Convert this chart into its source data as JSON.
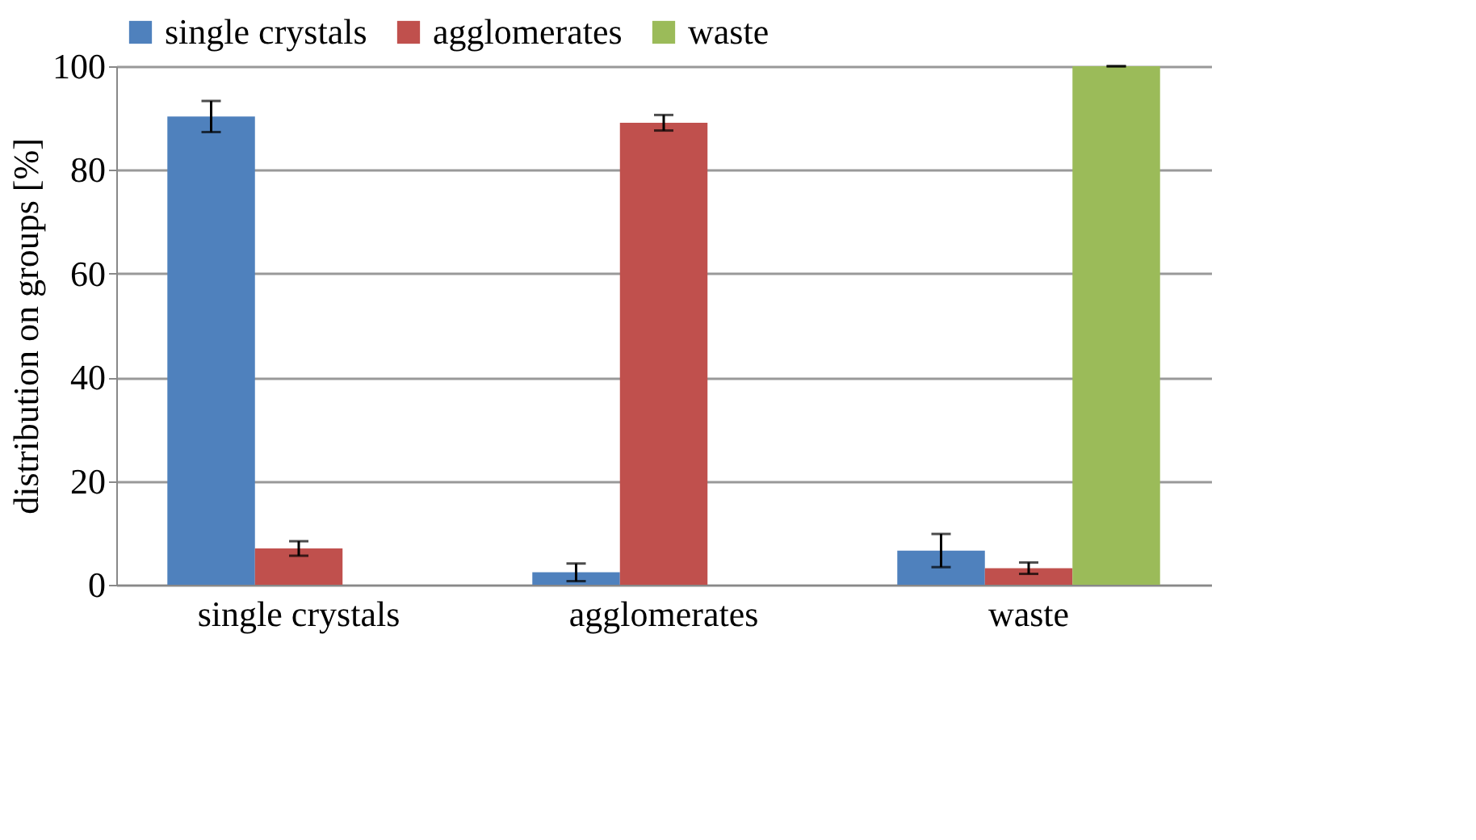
{
  "chart_data": {
    "type": "bar",
    "ylabel": "distribution on groups [%]",
    "categories": [
      "single crystals",
      "agglomerates",
      "waste"
    ],
    "series": [
      {
        "name": "single crystals",
        "color": "#4f81bd",
        "values": [
          90.3,
          2.4,
          6.6
        ],
        "errors": [
          3,
          1.7,
          3.2
        ]
      },
      {
        "name": "agglomerates",
        "color": "#c0504d",
        "values": [
          7.0,
          89.1,
          3.2
        ],
        "errors": [
          1.4,
          1.5,
          1.1
        ]
      },
      {
        "name": "waste",
        "color": "#9bbb59",
        "values": [
          null,
          null,
          100
        ],
        "errors": [
          null,
          null,
          0
        ]
      }
    ],
    "ylim": [
      0,
      100
    ],
    "yticks": [
      0,
      20,
      40,
      60,
      80,
      100
    ],
    "grid": "y",
    "legend": "top"
  }
}
